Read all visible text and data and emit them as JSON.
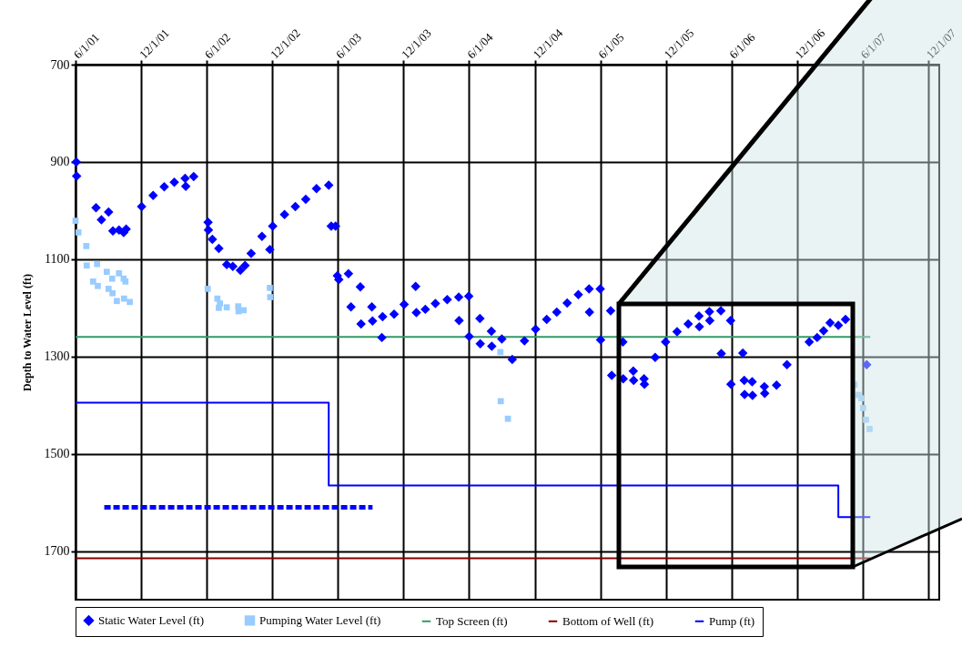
{
  "chart_data": {
    "type": "scatter",
    "ylabel": "Depth to Water Level (ft)",
    "xlim": [
      "2001-06-01",
      "2008-01-01"
    ],
    "ylim": [
      1800,
      700
    ],
    "xticks": [
      {
        "value": "2001-06-01",
        "label": "6/1/01"
      },
      {
        "value": "2001-12-01",
        "label": "12/1/01"
      },
      {
        "value": "2002-06-01",
        "label": "6/1/02"
      },
      {
        "value": "2002-12-01",
        "label": "12/1/02"
      },
      {
        "value": "2003-06-01",
        "label": "6/1/03"
      },
      {
        "value": "2003-12-01",
        "label": "12/1/03"
      },
      {
        "value": "2004-06-01",
        "label": "6/1/04"
      },
      {
        "value": "2004-12-01",
        "label": "12/1/04"
      },
      {
        "value": "2005-06-01",
        "label": "6/1/05"
      },
      {
        "value": "2005-12-01",
        "label": "12/1/05"
      },
      {
        "value": "2006-06-01",
        "label": "6/1/06"
      },
      {
        "value": "2006-12-01",
        "label": "12/1/06"
      },
      {
        "value": "2007-06-01",
        "label": "6/1/07"
      },
      {
        "value": "2007-12-01",
        "label": "12/1/07"
      }
    ],
    "yticks": [
      700,
      900,
      1100,
      1300,
      1500,
      1700
    ],
    "grid": true,
    "legend": "bottom",
    "series": [
      {
        "name": "Static Water Level (ft)",
        "marker": "diamond",
        "color": "#0000ff",
        "x": [
          "2001-06-03",
          "2001-06-04",
          "2001-07-28",
          "2001-08-12",
          "2001-09-01",
          "2001-09-13",
          "2001-09-30",
          "2001-10-13",
          "2001-10-20",
          "2001-12-02",
          "2002-01-03",
          "2002-02-03",
          "2002-03-03",
          "2002-04-02",
          "2002-04-04",
          "2002-04-26",
          "2002-06-05",
          "2002-06-06",
          "2002-06-17",
          "2002-07-05",
          "2002-07-27",
          "2002-08-13",
          "2002-09-03",
          "2002-09-16",
          "2002-10-03",
          "2002-11-02",
          "2002-11-24",
          "2002-12-02",
          "2003-01-04",
          "2003-02-03",
          "2003-03-04",
          "2003-04-03",
          "2003-05-07",
          "2003-05-14",
          "2003-05-26",
          "2003-05-31",
          "2003-06-04",
          "2003-07-01",
          "2003-07-08",
          "2003-08-03",
          "2003-08-05",
          "2003-09-04",
          "2003-09-06",
          "2003-10-02",
          "2003-10-04",
          "2003-11-05",
          "2003-12-03",
          "2004-01-04",
          "2004-01-06",
          "2004-01-31",
          "2004-02-28",
          "2004-04-01",
          "2004-05-03",
          "2004-05-04",
          "2004-05-31",
          "2004-06-01",
          "2004-07-01",
          "2004-07-02",
          "2004-08-02",
          "2004-08-03",
          "2004-08-31",
          "2004-09-29",
          "2004-11-02",
          "2004-12-03",
          "2005-01-03",
          "2005-01-31",
          "2005-03-01",
          "2005-04-01",
          "2005-05-01",
          "2005-05-02",
          "2005-06-01",
          "2005-06-02",
          "2005-06-30",
          "2005-07-03",
          "2005-08-03",
          "2005-08-04",
          "2005-09-01",
          "2005-09-02",
          "2005-10-01",
          "2005-10-02",
          "2005-11-01",
          "2005-11-30",
          "2006-01-01",
          "2006-02-01",
          "2006-03-03",
          "2006-03-04",
          "2006-04-01",
          "2006-04-02",
          "2006-05-03",
          "2006-05-04",
          "2006-05-30",
          "2006-05-31",
          "2006-07-03",
          "2006-07-07",
          "2006-07-08",
          "2006-07-29",
          "2006-07-30",
          "2006-09-01",
          "2006-09-02",
          "2006-10-05",
          "2006-11-03",
          "2007-01-04",
          "2007-01-26",
          "2007-02-13",
          "2007-03-03",
          "2007-03-26",
          "2007-04-15",
          "2007-06-13"
        ],
        "values": [
          900,
          929,
          994,
          1019,
          1003,
          1042,
          1040,
          1045,
          1038,
          992,
          969,
          951,
          942,
          934,
          950,
          930,
          1024,
          1040,
          1059,
          1078,
          1111,
          1115,
          1123,
          1113,
          1088,
          1053,
          1080,
          1032,
          1008,
          992,
          977,
          955,
          948,
          1032,
          1032,
          1134,
          1142,
          1130,
          1198,
          1157,
          1233,
          1198,
          1227,
          1261,
          1218,
          1213,
          1193,
          1156,
          1210,
          1203,
          1191,
          1183,
          1178,
          1226,
          1176,
          1259,
          1222,
          1274,
          1248,
          1279,
          1264,
          1306,
          1268,
          1244,
          1224,
          1209,
          1190,
          1173,
          1161,
          1209,
          1161,
          1266,
          1206,
          1339,
          1270,
          1346,
          1330,
          1349,
          1346,
          1357,
          1302,
          1270,
          1249,
          1233,
          1217,
          1239,
          1208,
          1226,
          1206,
          1294,
          1226,
          1357,
          1293,
          1349,
          1378,
          1352,
          1380,
          1362,
          1376,
          1359,
          1317,
          1270,
          1261,
          1247,
          1231,
          1236,
          1224,
          1317
        ]
      },
      {
        "name": "Pumping Water Level (ft)",
        "marker": "square",
        "color": "#99ccff",
        "x": [
          "2001-06-01",
          "2001-06-09",
          "2001-07-01",
          "2001-07-02",
          "2001-07-31",
          "2001-07-20",
          "2001-08-02",
          "2001-08-27",
          "2001-09-11",
          "2001-09-01",
          "2001-09-12",
          "2001-09-24",
          "2001-09-30",
          "2001-10-13",
          "2001-10-18",
          "2001-10-14",
          "2001-10-30",
          "2002-06-04",
          "2002-07-01",
          "2002-07-08",
          "2002-07-05",
          "2002-07-27",
          "2002-08-28",
          "2002-08-29",
          "2002-09-12",
          "2002-11-24",
          "2002-11-25",
          "2004-08-27",
          "2004-08-28",
          "2004-09-17",
          "2007-05-10",
          "2007-05-21",
          "2007-05-29",
          "2007-06-03",
          "2007-06-11",
          "2007-06-21"
        ],
        "values": [
          1021,
          1045,
          1073,
          1113,
          1110,
          1146,
          1155,
          1126,
          1140,
          1161,
          1170,
          1186,
          1129,
          1140,
          1146,
          1181,
          1188,
          1161,
          1181,
          1191,
          1200,
          1199,
          1197,
          1207,
          1205,
          1159,
          1178,
          1291,
          1392,
          1428,
          1358,
          1379,
          1386,
          1406,
          1430,
          1449
        ]
      },
      {
        "name": "Top Screen (ft)",
        "type": "line",
        "color": "#339966",
        "x": [
          "2001-06-01",
          "2007-06-23"
        ],
        "values": [
          1260,
          1260
        ]
      },
      {
        "name": "Bottom of Well (ft)",
        "type": "line",
        "color": "#800000",
        "x": [
          "2001-06-01",
          "2007-06-23"
        ],
        "values": [
          1715,
          1715
        ]
      },
      {
        "name": "Pump (ft)",
        "type": "line",
        "color": "#0000ff",
        "x": [
          "2001-06-01",
          "2003-05-07",
          "2003-05-07",
          "2007-03-26",
          "2007-03-26",
          "2007-06-23"
        ],
        "values": [
          1395,
          1395,
          1565,
          1565,
          1630,
          1630
        ]
      },
      {
        "type": "line",
        "color": "#0000ff",
        "line_style": "dashed",
        "x": [
          "2001-08-20",
          "2003-09-06"
        ],
        "values": [
          1610,
          1610
        ]
      }
    ]
  }
}
